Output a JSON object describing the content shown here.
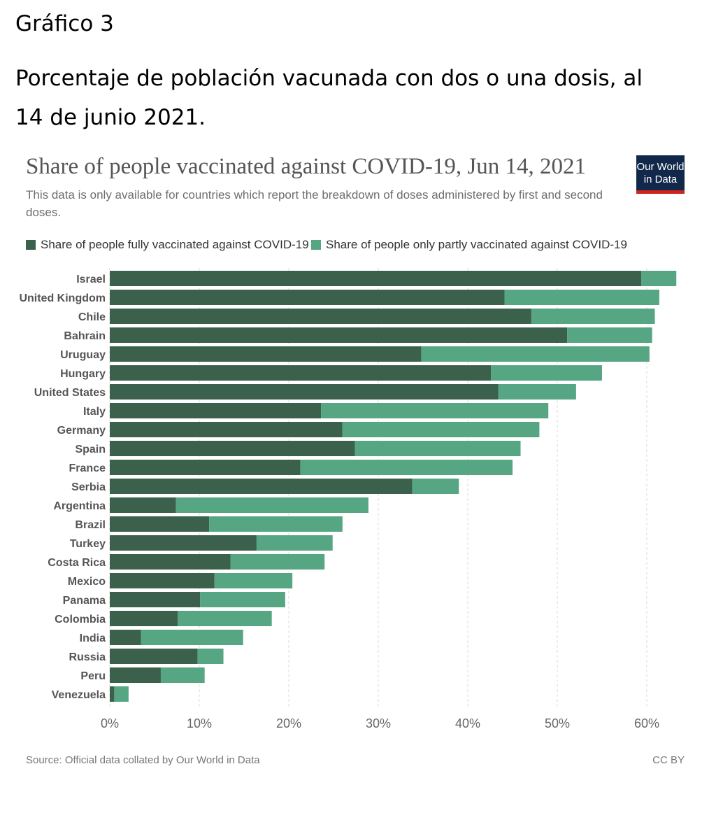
{
  "doc": {
    "label": "Gráfico 3",
    "title": "Porcentaje de población vacunada con dos o una dosis, al 14 de junio 2021."
  },
  "logo": {
    "line1": "Our World",
    "line2": "in Data"
  },
  "source": "Source: Official data collated by Our World in Data",
  "license": "CC BY",
  "colors": {
    "fully": "#3b604b",
    "partly": "#56a683"
  },
  "chart_data": {
    "type": "bar",
    "orientation": "horizontal",
    "stacked": true,
    "title": "Share of people vaccinated against COVID-19, Jun 14, 2021",
    "subtitle": "This data is only available for countries which report the breakdown of doses administered by first and second doses.",
    "categories": [
      "Israel",
      "United Kingdom",
      "Chile",
      "Bahrain",
      "Uruguay",
      "Hungary",
      "United States",
      "Italy",
      "Germany",
      "Spain",
      "France",
      "Serbia",
      "Argentina",
      "Brazil",
      "Turkey",
      "Costa Rica",
      "Mexico",
      "Panama",
      "Colombia",
      "India",
      "Russia",
      "Peru",
      "Venezuela"
    ],
    "series": [
      {
        "name": "Share of people fully vaccinated against COVID-19",
        "color": "#3b604b",
        "values": [
          59.4,
          44.1,
          47.1,
          51.1,
          34.8,
          42.6,
          43.4,
          23.6,
          26.0,
          27.4,
          21.3,
          33.8,
          7.4,
          11.1,
          16.4,
          13.5,
          11.7,
          10.1,
          7.6,
          3.5,
          9.8,
          5.7,
          0.5
        ]
      },
      {
        "name": "Share of people only partly vaccinated against COVID-19",
        "color": "#56a683",
        "values": [
          3.9,
          17.3,
          13.8,
          9.5,
          25.5,
          12.4,
          8.7,
          25.4,
          22.0,
          18.5,
          23.7,
          5.2,
          21.5,
          14.9,
          8.5,
          10.5,
          8.7,
          9.5,
          10.5,
          11.4,
          2.9,
          4.9,
          1.6
        ]
      }
    ],
    "xlim": [
      0,
      65
    ],
    "xticks": [
      0,
      10,
      20,
      30,
      40,
      50,
      60
    ],
    "xtick_labels": [
      "0%",
      "10%",
      "20%",
      "30%",
      "40%",
      "50%",
      "60%"
    ],
    "grid": "vertical dashed",
    "legend_position": "top"
  }
}
